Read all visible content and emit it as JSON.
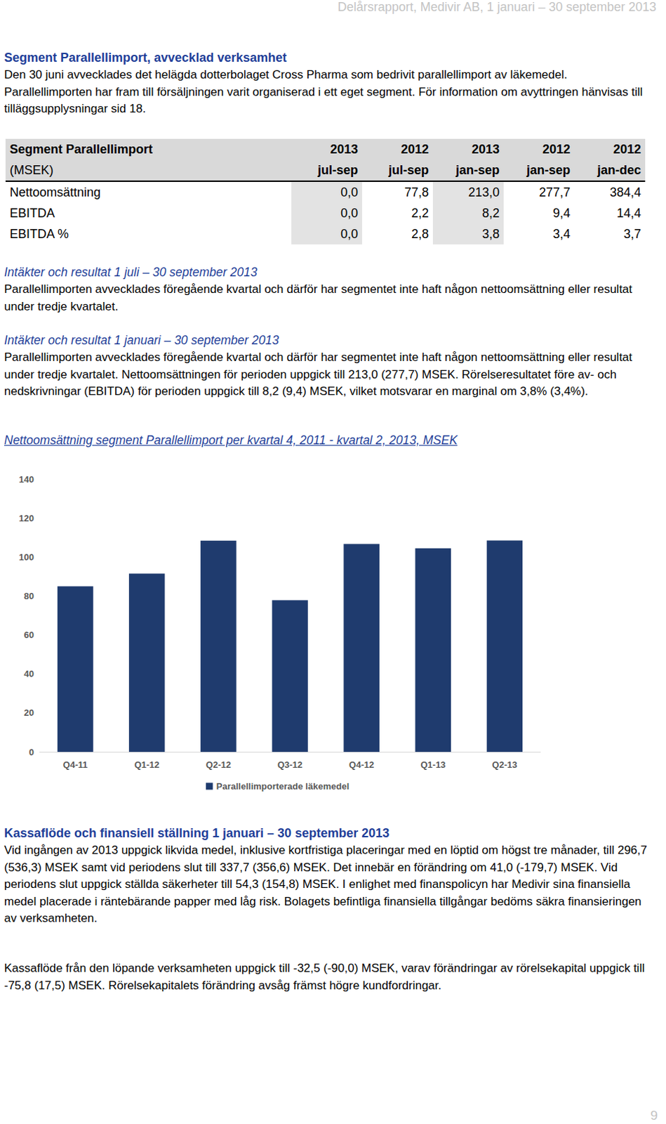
{
  "header": "Delårsrapport, Medivir AB, 1 januari – 30 september 2013",
  "section": {
    "heading": "Segment Parallellimport, avvecklad verksamhet",
    "paragraph": "Den 30 juni avvecklades det helägda dotterbolaget Cross Pharma som bedrivit parallellimport av läkemedel. Parallellimporten har fram till försäljningen varit organiserad i ett eget segment. För information om avyttringen hänvisas till tilläggsupplysningar sid 18."
  },
  "table": {
    "title": "Segment Parallellimport",
    "unit": "(MSEK)",
    "columns": [
      {
        "year": "2013",
        "period": "jul-sep"
      },
      {
        "year": "2012",
        "period": "jul-sep"
      },
      {
        "year": "2013",
        "period": "jan-sep"
      },
      {
        "year": "2012",
        "period": "jan-sep"
      },
      {
        "year": "2012",
        "period": "jan-dec"
      }
    ],
    "rows": [
      [
        "Nettoomsättning",
        "0,0",
        "77,8",
        "213,0",
        "277,7",
        "384,4"
      ],
      [
        "EBITDA",
        "0,0",
        "2,2",
        "8,2",
        "9,4",
        "14,4"
      ],
      [
        "EBITDA %",
        "0,0",
        "2,8",
        "3,8",
        "3,4",
        "3,7"
      ]
    ]
  },
  "subsections": [
    {
      "heading": "Intäkter och resultat 1 juli – 30 september 2013",
      "paragraph": "Parallellimporten avvecklades föregående kvartal och därför har segmentet inte haft någon nettoomsättning eller resultat under tredje kvartalet."
    },
    {
      "heading": "Intäkter och resultat 1 januari – 30 september 2013",
      "paragraph": "Parallellimporten avvecklades föregående kvartal och därför har segmentet inte haft någon nettoomsättning eller resultat under tredje kvartalet. Nettoomsättningen för perioden uppgick till 213,0 (277,7) MSEK. Rörelseresultatet före av- och nedskrivningar (EBITDA) för perioden uppgick till 8,2 (9,4) MSEK, vilket motsvarar en marginal om 3,8% (3,4%)."
    }
  ],
  "chart_heading": "Nettoomsättning segment Parallellimport per kvartal 4, 2011 - kvartal 2, 2013, MSEK",
  "chart_data": {
    "type": "bar",
    "categories": [
      "Q4-11",
      "Q1-12",
      "Q2-12",
      "Q3-12",
      "Q4-12",
      "Q1-13",
      "Q2-13"
    ],
    "series": [
      {
        "name": "Parallellimporterade läkemedel",
        "color": "#1f3b6e",
        "values": [
          85,
          91.5,
          108.4,
          77.8,
          106.7,
          104.5,
          108.5
        ]
      }
    ],
    "ylim": [
      0,
      140
    ],
    "yticks": [
      0,
      20,
      40,
      60,
      80,
      100,
      120,
      140
    ],
    "grid": false,
    "legend": "bottom"
  },
  "cash": {
    "heading": "Kassaflöde och finansiell ställning 1 januari – 30 september 2013",
    "paragraphs": [
      "Vid ingången av 2013 uppgick likvida medel, inklusive kortfristiga placeringar med en löptid om högst tre månader, till 296,7 (536,3) MSEK samt vid periodens slut till 337,7 (356,6) MSEK. Det innebär en förändring om 41,0 (-179,7) MSEK. Vid periodens slut uppgick ställda säkerheter till 54,3 (154,8) MSEK. I enlighet med finanspolicyn har Medivir sina finansiella medel placerade i räntebärande papper med låg risk. Bolagets befintliga finansiella tillgångar bedöms säkra finansieringen av verksamheten.",
      "Kassaflöde från den löpande verksamheten uppgick till -32,5 (-90,0) MSEK, varav förändringar av rörelsekapital uppgick till -75,8 (17,5) MSEK. Rörelsekapitalets förändring avsåg främst högre kundfordringar."
    ]
  },
  "page_number": "9"
}
